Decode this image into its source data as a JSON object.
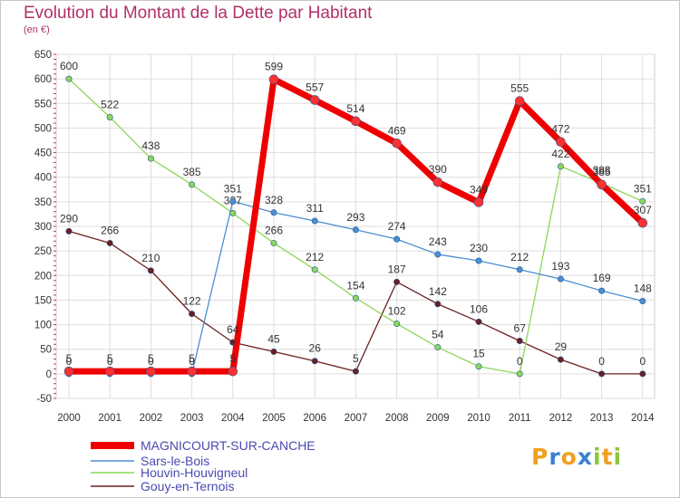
{
  "title": "Evolution du Montant de la Dette par Habitant",
  "subtitle": "(en €)",
  "logo": {
    "letters": [
      {
        "ch": "P",
        "color": "#f0a020"
      },
      {
        "ch": "r",
        "color": "#3b7fd1"
      },
      {
        "ch": "o",
        "color": "#f0a020"
      },
      {
        "ch": "x",
        "color": "#3b7fd1"
      },
      {
        "ch": "i",
        "color": "#8cc63f"
      },
      {
        "ch": "t",
        "color": "#f0a020"
      },
      {
        "ch": "i",
        "color": "#8cc63f"
      }
    ]
  },
  "chart_data": {
    "type": "line",
    "title": "Evolution du Montant de la Dette par Habitant",
    "ylabel": "(en €)",
    "xlabel": "",
    "x": [
      "2000",
      "2001",
      "2002",
      "2003",
      "2004",
      "2005",
      "2006",
      "2007",
      "2008",
      "2009",
      "2010",
      "2011",
      "2012",
      "2013",
      "2014"
    ],
    "ylim": [
      -50,
      650
    ],
    "yticks": [
      -50,
      0,
      50,
      100,
      150,
      200,
      250,
      300,
      350,
      400,
      450,
      500,
      550,
      600,
      650
    ],
    "grid": true,
    "legend_position": "bottom-left",
    "series": [
      {
        "name": "Gouy-en-Ternois",
        "color": "#6b1f1f",
        "values": [
          290,
          266,
          210,
          122,
          64,
          45,
          26,
          5,
          187,
          142,
          106,
          67,
          29,
          0,
          0
        ]
      },
      {
        "name": "Houvin-Houvigneul",
        "color": "#8cd65a",
        "values": [
          600,
          522,
          438,
          385,
          327,
          266,
          212,
          154,
          102,
          54,
          15,
          0,
          422,
          388,
          351
        ]
      },
      {
        "name": "Sars-le-Bois",
        "color": "#4a8fd0",
        "values": [
          0,
          0,
          0,
          0,
          351,
          328,
          311,
          293,
          274,
          243,
          230,
          212,
          193,
          169,
          148
        ]
      },
      {
        "name": "MAGNICOURT-SUR-CANCHE",
        "color": "#ee0000",
        "values": [
          5,
          5,
          5,
          5,
          5,
          599,
          557,
          514,
          469,
          390,
          349,
          555,
          472,
          385,
          307
        ]
      }
    ],
    "legend": [
      "MAGNICOURT-SUR-CANCHE",
      "Sars-le-Bois",
      "Houvin-Houvigneul",
      "Gouy-en-Ternois"
    ]
  }
}
